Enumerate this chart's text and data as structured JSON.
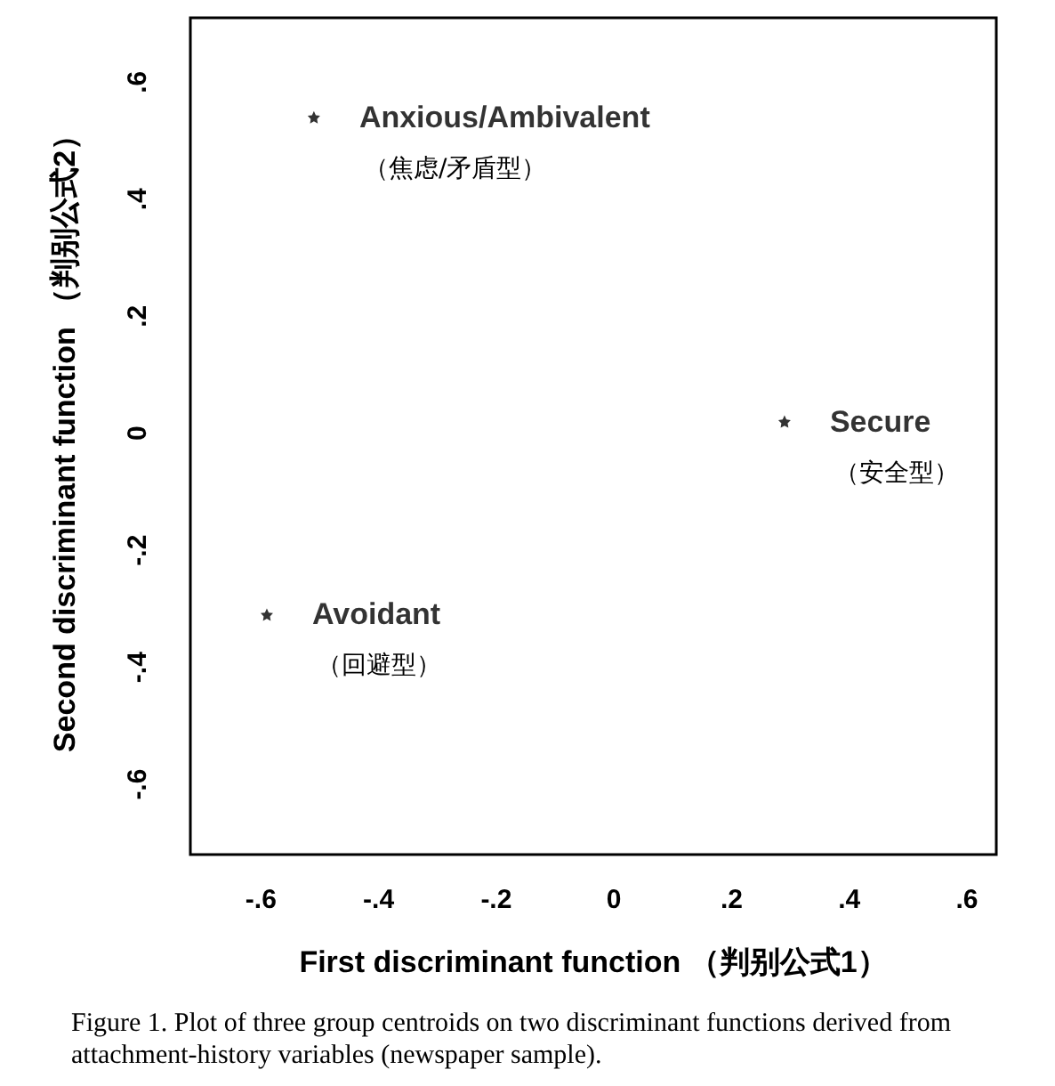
{
  "chart_data": {
    "type": "scatter",
    "xlabel": "First discriminant function （判别公式1）",
    "ylabel": "Second discriminant function （判别公式2）",
    "series": [
      {
        "name": "Anxious/Ambivalent",
        "color": "#000000",
        "x": [
          -0.51
        ],
        "values": [
          0.54
        ]
      },
      {
        "name": "Secure",
        "color": "#000000",
        "x": [
          0.29
        ],
        "values": [
          0.02
        ]
      },
      {
        "name": "Avoidant",
        "color": "#000000",
        "x": [
          -0.59
        ],
        "values": [
          -0.31
        ]
      }
    ],
    "annotations": [
      {
        "text": "（焦虑/矛盾型）",
        "x": -0.51,
        "y": 0.54
      },
      {
        "text": "（安全型）",
        "x": 0.29,
        "y": 0.02
      },
      {
        "text": "（回避型）",
        "x": -0.59,
        "y": -0.31
      },
      "Figure 1. Plot of three group centroids on two discriminant functions derived from attachment-history variables (newspaper sample)."
    ],
    "xlim": [
      -0.72,
      0.65
    ],
    "ylim": [
      -0.72,
      0.71
    ],
    "xticks": [
      {
        "value": -0.6,
        "label": "-.6"
      },
      {
        "value": -0.4,
        "label": "-.4"
      },
      {
        "value": -0.2,
        "label": "-.2"
      },
      0,
      {
        "value": 0.2,
        "label": ".2"
      },
      {
        "value": 0.4,
        "label": ".4"
      },
      {
        "value": 0.6,
        "label": ".6"
      }
    ],
    "yticks": [
      {
        "value": -0.6,
        "label": "-.6"
      },
      {
        "value": -0.4,
        "label": "-.4"
      },
      {
        "value": -0.2,
        "label": "-.2"
      },
      0,
      {
        "value": 0.2,
        "label": ".2"
      },
      {
        "value": 0.4,
        "label": ".4"
      },
      {
        "value": 0.6,
        "label": ".6"
      }
    ],
    "grid": false,
    "legend": false,
    "marker": "star"
  }
}
